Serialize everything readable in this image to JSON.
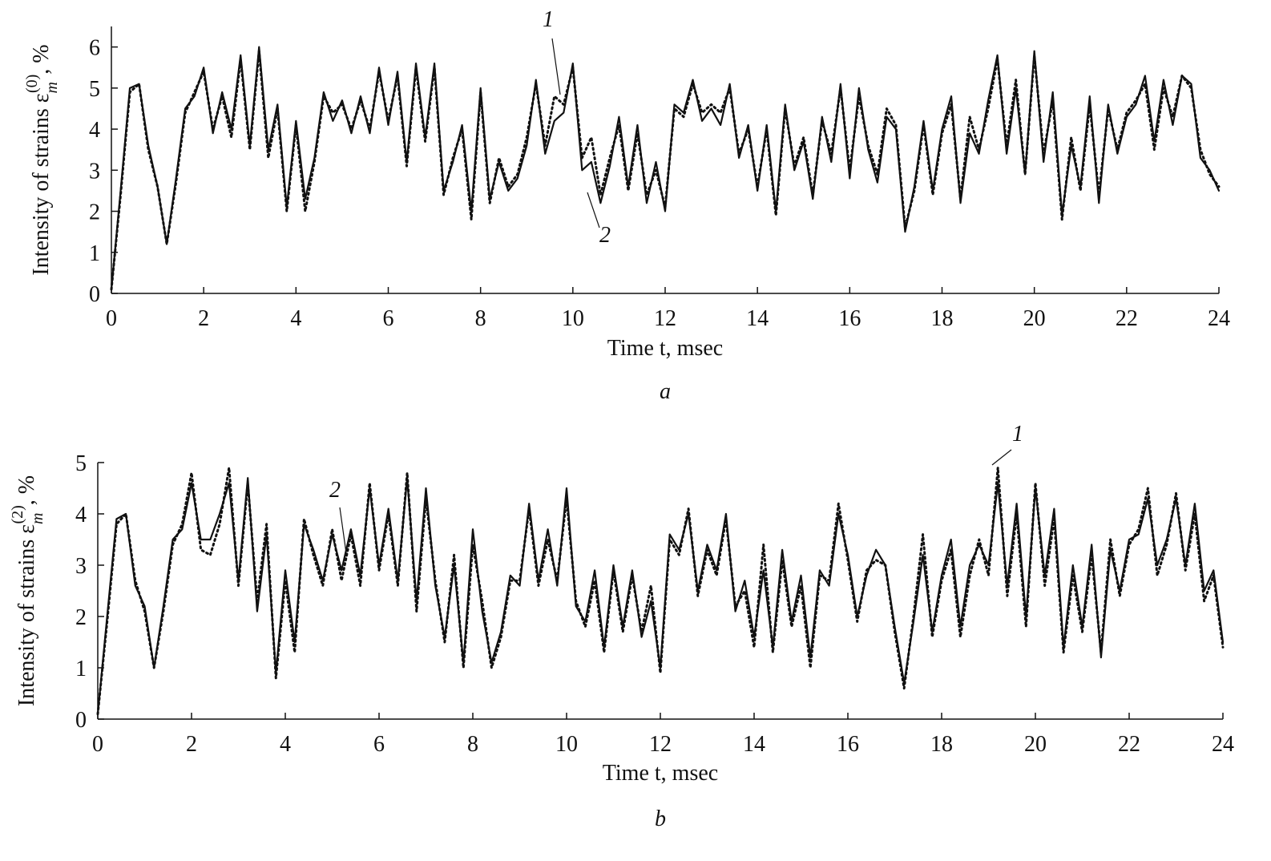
{
  "chart_data": [
    {
      "type": "line",
      "caption": "a",
      "xlabel": "Time t, msec",
      "ylabel_parts": [
        "Intensity of strains ε",
        "m",
        "(0)",
        ", %"
      ],
      "xlim": [
        0,
        24
      ],
      "xticks": [
        0,
        2,
        4,
        6,
        8,
        10,
        12,
        14,
        16,
        18,
        20,
        22,
        24
      ],
      "ylim": [
        0,
        6.5
      ],
      "yticks": [
        0,
        1,
        2,
        3,
        4,
        5,
        6
      ],
      "x": [
        0,
        0.2,
        0.4,
        0.6,
        0.8,
        1,
        1.2,
        1.4,
        1.6,
        1.8,
        2,
        2.2,
        2.4,
        2.6,
        2.8,
        3,
        3.2,
        3.4,
        3.6,
        3.8,
        4,
        4.2,
        4.4,
        4.6,
        4.8,
        5,
        5.2,
        5.4,
        5.6,
        5.8,
        6,
        6.2,
        6.4,
        6.6,
        6.8,
        7,
        7.2,
        7.4,
        7.6,
        7.8,
        8,
        8.2,
        8.4,
        8.6,
        8.8,
        9,
        9.2,
        9.4,
        9.6,
        9.8,
        10,
        10.2,
        10.4,
        10.6,
        10.8,
        11,
        11.2,
        11.4,
        11.6,
        11.8,
        12,
        12.2,
        12.4,
        12.6,
        12.8,
        13,
        13.2,
        13.4,
        13.6,
        13.8,
        14,
        14.2,
        14.4,
        14.6,
        14.8,
        15,
        15.2,
        15.4,
        15.6,
        15.8,
        16,
        16.2,
        16.4,
        16.6,
        16.8,
        17,
        17.2,
        17.4,
        17.6,
        17.8,
        18,
        18.2,
        18.4,
        18.6,
        18.8,
        19,
        19.2,
        19.4,
        19.6,
        19.8,
        20,
        20.2,
        20.4,
        20.6,
        20.8,
        21,
        21.2,
        21.4,
        21.6,
        21.8,
        22,
        22.2,
        22.4,
        22.6,
        22.8,
        23,
        23.2,
        23.4,
        23.6,
        23.8,
        24
      ],
      "series": [
        {
          "name": "1",
          "color": "#111111",
          "dash": "dotted",
          "values": [
            0.1,
            2.4,
            4.9,
            5.1,
            3.5,
            2.6,
            1.2,
            2.7,
            4.4,
            4.9,
            5.4,
            4.0,
            4.8,
            3.8,
            5.7,
            3.5,
            5.9,
            3.3,
            4.5,
            2.0,
            4.1,
            2.0,
            3.2,
            4.8,
            4.4,
            4.6,
            4.0,
            4.7,
            4.0,
            5.4,
            4.2,
            5.3,
            3.1,
            5.5,
            3.7,
            5.5,
            2.4,
            3.3,
            4.0,
            1.8,
            4.9,
            2.2,
            3.3,
            2.6,
            2.9,
            3.8,
            5.1,
            3.6,
            4.8,
            4.6,
            5.5,
            3.3,
            3.8,
            2.4,
            3.3,
            4.1,
            2.5,
            3.9,
            2.4,
            3.0,
            2.1,
            4.5,
            4.3,
            5.1,
            4.4,
            4.6,
            4.4,
            5.0,
            3.4,
            4.0,
            2.6,
            4.0,
            1.9,
            4.5,
            3.1,
            3.8,
            2.4,
            4.2,
            3.4,
            5.0,
            3.0,
            4.8,
            3.6,
            2.9,
            4.5,
            4.1,
            1.6,
            2.5,
            4.1,
            2.4,
            3.9,
            4.6,
            2.3,
            4.3,
            3.5,
            4.5,
            5.7,
            3.6,
            5.2,
            2.9,
            5.8,
            3.4,
            4.7,
            1.8,
            3.8,
            2.5,
            4.6,
            2.4,
            4.5,
            3.5,
            4.4,
            4.7,
            5.1,
            3.5,
            5.0,
            4.3,
            5.3,
            5.0,
            3.5,
            2.9,
            2.6
          ]
        },
        {
          "name": "2",
          "color": "#111111",
          "dash": "solid",
          "values": [
            0.1,
            2.5,
            5.0,
            5.1,
            3.6,
            2.6,
            1.2,
            2.8,
            4.5,
            4.8,
            5.5,
            3.9,
            4.9,
            4.0,
            5.8,
            3.6,
            6.0,
            3.5,
            4.6,
            2.1,
            4.2,
            2.3,
            3.3,
            4.9,
            4.2,
            4.7,
            3.9,
            4.8,
            3.9,
            5.5,
            4.1,
            5.4,
            3.2,
            5.6,
            3.8,
            5.6,
            2.5,
            3.2,
            4.1,
            2.0,
            5.0,
            2.3,
            3.2,
            2.5,
            2.8,
            3.6,
            5.2,
            3.4,
            4.2,
            4.4,
            5.6,
            3.0,
            3.2,
            2.2,
            3.1,
            4.3,
            2.6,
            4.1,
            2.2,
            3.2,
            2.0,
            4.6,
            4.4,
            5.2,
            4.2,
            4.5,
            4.1,
            5.1,
            3.3,
            4.1,
            2.5,
            4.1,
            2.0,
            4.6,
            3.0,
            3.7,
            2.3,
            4.3,
            3.2,
            5.1,
            2.8,
            5.0,
            3.5,
            2.7,
            4.3,
            4.0,
            1.5,
            2.6,
            4.2,
            2.5,
            4.0,
            4.8,
            2.2,
            3.9,
            3.4,
            4.7,
            5.8,
            3.4,
            5.0,
            2.9,
            5.9,
            3.2,
            4.9,
            1.9,
            3.6,
            2.6,
            4.8,
            2.2,
            4.6,
            3.4,
            4.3,
            4.6,
            5.3,
            3.7,
            5.2,
            4.1,
            5.3,
            5.1,
            3.3,
            3.0,
            2.5
          ]
        }
      ]
    },
    {
      "type": "line",
      "caption": "b",
      "xlabel": "Time t, msec",
      "ylabel_parts": [
        "Intensity of strains ε",
        "m",
        "(2)",
        ", %"
      ],
      "xlim": [
        0,
        24
      ],
      "xticks": [
        0,
        2,
        4,
        6,
        8,
        10,
        12,
        14,
        16,
        18,
        20,
        22,
        24
      ],
      "ylim": [
        0,
        5
      ],
      "yticks": [
        0,
        1,
        2,
        3,
        4,
        5
      ],
      "x": [
        0,
        0.2,
        0.4,
        0.6,
        0.8,
        1,
        1.2,
        1.4,
        1.6,
        1.8,
        2,
        2.2,
        2.4,
        2.6,
        2.8,
        3,
        3.2,
        3.4,
        3.6,
        3.8,
        4,
        4.2,
        4.4,
        4.6,
        4.8,
        5,
        5.2,
        5.4,
        5.6,
        5.8,
        6,
        6.2,
        6.4,
        6.6,
        6.8,
        7,
        7.2,
        7.4,
        7.6,
        7.8,
        8,
        8.2,
        8.4,
        8.6,
        8.8,
        9,
        9.2,
        9.4,
        9.6,
        9.8,
        10,
        10.2,
        10.4,
        10.6,
        10.8,
        11,
        11.2,
        11.4,
        11.6,
        11.8,
        12,
        12.2,
        12.4,
        12.6,
        12.8,
        13,
        13.2,
        13.4,
        13.6,
        13.8,
        14,
        14.2,
        14.4,
        14.6,
        14.8,
        15,
        15.2,
        15.4,
        15.6,
        15.8,
        16,
        16.2,
        16.4,
        16.6,
        16.8,
        17,
        17.2,
        17.4,
        17.6,
        17.8,
        18,
        18.2,
        18.4,
        18.6,
        18.8,
        19,
        19.2,
        19.4,
        19.6,
        19.8,
        20,
        20.2,
        20.4,
        20.6,
        20.8,
        21,
        21.2,
        21.4,
        21.6,
        21.8,
        22,
        22.2,
        22.4,
        22.6,
        22.8,
        23,
        23.2,
        23.4,
        23.6,
        23.8,
        24
      ],
      "series": [
        {
          "name": "1",
          "color": "#111111",
          "dash": "dotted",
          "values": [
            0.1,
            1.9,
            3.8,
            4.0,
            2.7,
            2.1,
            1.0,
            2.1,
            3.4,
            3.8,
            4.8,
            3.3,
            3.2,
            3.8,
            4.9,
            2.6,
            4.6,
            2.3,
            3.8,
            0.8,
            2.7,
            1.3,
            3.9,
            3.2,
            2.6,
            3.7,
            2.7,
            3.6,
            2.6,
            4.6,
            2.9,
            4.0,
            2.6,
            4.8,
            2.1,
            4.3,
            2.7,
            1.5,
            3.2,
            1.0,
            3.4,
            2.3,
            1.0,
            1.6,
            2.7,
            2.7,
            4.1,
            2.6,
            3.5,
            2.7,
            4.3,
            2.3,
            1.8,
            2.7,
            1.3,
            2.9,
            1.7,
            2.8,
            1.7,
            2.6,
            0.9,
            3.5,
            3.2,
            4.1,
            2.4,
            3.3,
            2.8,
            3.9,
            2.2,
            2.5,
            1.4,
            3.4,
            1.3,
            3.1,
            1.8,
            2.6,
            1.0,
            2.8,
            2.7,
            4.2,
            3.1,
            1.9,
            2.9,
            3.1,
            3.0,
            1.7,
            0.6,
            2.0,
            3.6,
            1.6,
            2.7,
            3.3,
            1.6,
            2.8,
            3.5,
            2.8,
            4.9,
            2.4,
            4.0,
            1.8,
            4.6,
            2.6,
            3.9,
            1.3,
            2.8,
            1.7,
            3.2,
            1.3,
            3.5,
            2.4,
            3.4,
            3.7,
            4.5,
            2.8,
            3.4,
            4.4,
            2.9,
            4.0,
            2.3,
            2.8,
            1.4
          ]
        },
        {
          "name": "2",
          "color": "#111111",
          "dash": "solid",
          "values": [
            0.1,
            2.0,
            3.9,
            4.0,
            2.6,
            2.2,
            1.0,
            2.2,
            3.5,
            3.7,
            4.6,
            3.5,
            3.5,
            4.0,
            4.6,
            2.7,
            4.7,
            2.1,
            3.6,
            0.9,
            2.9,
            1.5,
            3.8,
            3.3,
            2.7,
            3.6,
            2.9,
            3.7,
            2.8,
            4.5,
            3.0,
            4.1,
            2.7,
            4.7,
            2.3,
            4.5,
            2.6,
            1.6,
            3.0,
            1.1,
            3.7,
            2.1,
            1.1,
            1.7,
            2.8,
            2.6,
            4.2,
            2.7,
            3.7,
            2.6,
            4.5,
            2.2,
            1.9,
            2.9,
            1.4,
            3.0,
            1.8,
            2.9,
            1.6,
            2.3,
            1.0,
            3.6,
            3.3,
            4.0,
            2.5,
            3.4,
            2.9,
            4.0,
            2.1,
            2.7,
            1.6,
            2.9,
            1.4,
            3.3,
            1.9,
            2.8,
            1.2,
            2.9,
            2.6,
            4.0,
            3.2,
            2.0,
            2.8,
            3.3,
            3.0,
            1.8,
            0.7,
            1.9,
            3.2,
            1.7,
            2.8,
            3.5,
            1.8,
            3.0,
            3.4,
            3.0,
            4.6,
            2.6,
            4.2,
            2.0,
            4.5,
            2.8,
            4.1,
            1.4,
            3.0,
            1.8,
            3.4,
            1.2,
            3.3,
            2.5,
            3.5,
            3.6,
            4.3,
            3.0,
            3.5,
            4.3,
            3.0,
            4.2,
            2.5,
            2.9,
            1.5
          ]
        }
      ]
    }
  ]
}
